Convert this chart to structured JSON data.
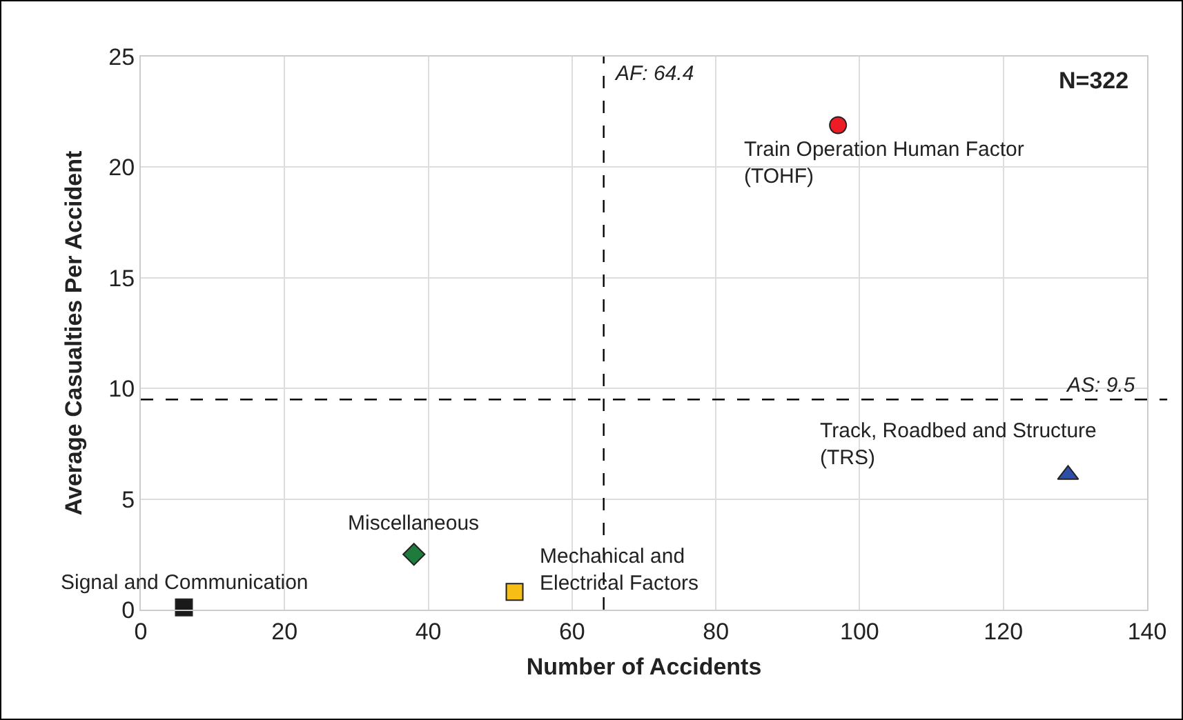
{
  "chart_data": {
    "type": "scatter",
    "xlabel": "Number of Accidents",
    "ylabel": "Average Casualties Per Accident",
    "xlim": [
      0,
      140
    ],
    "xticks": [
      0,
      20,
      40,
      60,
      80,
      100,
      120,
      140
    ],
    "ylim": [
      0,
      25
    ],
    "yticks": [
      0,
      5,
      10,
      15,
      20,
      25
    ],
    "grid": true,
    "legend": false,
    "series": [
      {
        "name": "Signal and Communication",
        "color": "#1a1a1a",
        "marker": "square",
        "x": [
          6
        ],
        "values": [
          0.1
        ]
      },
      {
        "name": "Miscellaneous",
        "color": "#1e7b3c",
        "marker": "diamond",
        "x": [
          38
        ],
        "values": [
          2.5
        ]
      },
      {
        "name": "Mechanical and\nElectrical Factors",
        "color": "#f7be16",
        "marker": "square",
        "x": [
          52
        ],
        "values": [
          0.8
        ]
      },
      {
        "name": "Train Operation Human Factor\n(TOHF)",
        "color": "#ee1c25",
        "marker": "circle",
        "x": [
          97
        ],
        "values": [
          21.9
        ]
      },
      {
        "name": "Track, Roadbed and Structure\n(TRS)",
        "color": "#2e4fa8",
        "marker": "triangle",
        "x": [
          129
        ],
        "values": [
          6.1
        ]
      }
    ],
    "ref_lines": [
      {
        "axis": "x",
        "value": 64.4,
        "label": "AF: 64.4",
        "color": "#000000",
        "line_style": "dashed"
      },
      {
        "axis": "y",
        "value": 9.5,
        "label": "AS: 9.5",
        "color": "#000000",
        "line_style": "dashed"
      }
    ],
    "annotations": [
      "N=322"
    ]
  }
}
